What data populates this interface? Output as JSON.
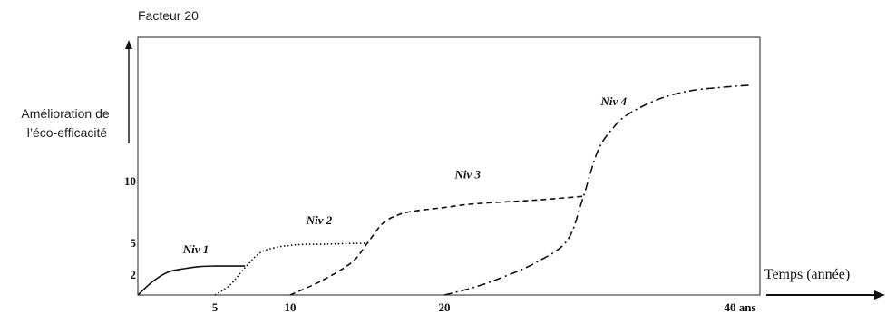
{
  "chart_data": {
    "type": "line",
    "title": "",
    "top_label": "Facteur 20",
    "ylabel": "Amélioration de\nl’éco-efficacité",
    "xlabel": "Temps (année)",
    "x_ticks": [
      "5",
      "10",
      "20",
      "40 ans"
    ],
    "y_ticks": [
      "2",
      "5",
      "10"
    ],
    "xlim": [
      0,
      40
    ],
    "ylim": [
      0,
      20
    ],
    "grid": false,
    "series": [
      {
        "name": "Niv 1",
        "style": "solid",
        "x": [
          0,
          1,
          2,
          3,
          4,
          5,
          6,
          7
        ],
        "y": [
          0,
          1.4,
          2.3,
          2.6,
          2.8,
          2.85,
          2.85,
          2.85
        ]
      },
      {
        "name": "Niv 2",
        "style": "dotted",
        "x": [
          5,
          6,
          7,
          8,
          9,
          10,
          11,
          12,
          13,
          15
        ],
        "y": [
          0,
          1.0,
          2.7,
          4.1,
          4.6,
          4.8,
          4.9,
          4.9,
          4.95,
          5.0
        ]
      },
      {
        "name": "Niv 3",
        "style": "dashed",
        "x": [
          10,
          12,
          14,
          15,
          16,
          17,
          18,
          20,
          22,
          26,
          29
        ],
        "y": [
          0,
          1.4,
          3.2,
          5.0,
          6.6,
          7.3,
          7.6,
          7.9,
          8.2,
          8.5,
          8.8
        ]
      },
      {
        "name": "Niv 4",
        "style": "dashdot",
        "x": [
          20,
          22,
          24,
          26,
          28,
          29,
          30,
          31,
          32,
          34,
          36,
          38,
          40
        ],
        "y": [
          0,
          0.8,
          1.9,
          3.2,
          5.2,
          8.5,
          12.6,
          14.6,
          15.8,
          17.1,
          17.8,
          18.1,
          18.3
        ]
      }
    ]
  }
}
